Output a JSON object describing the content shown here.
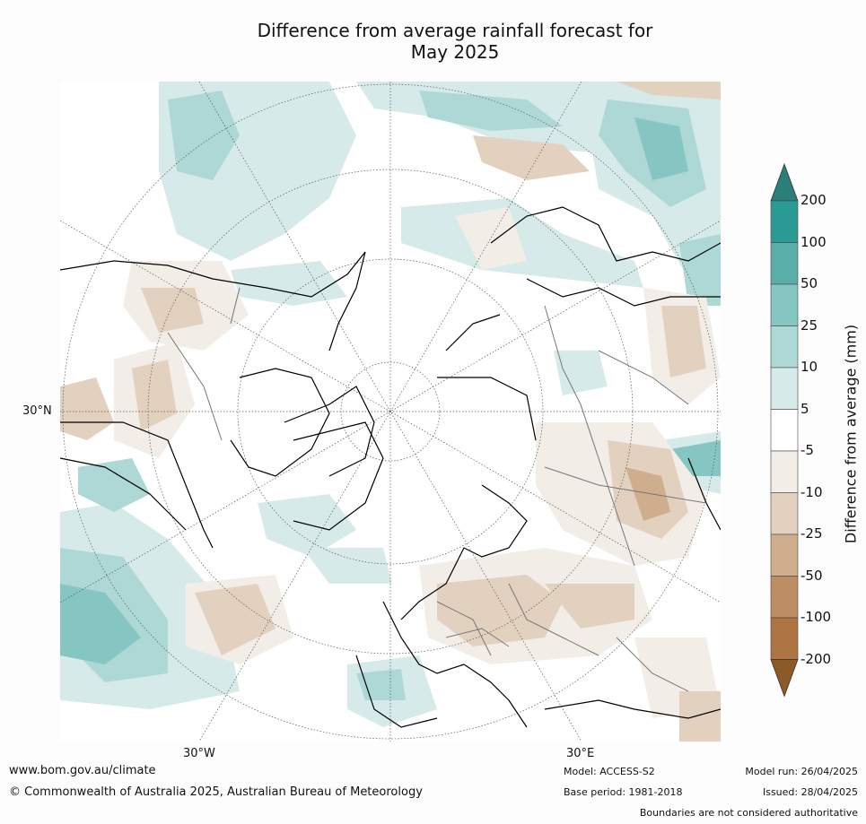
{
  "title": {
    "line1": "Difference from average rainfall forecast for",
    "line2": "May 2025"
  },
  "map": {
    "labels": {
      "lat_30n": "30°N",
      "lon_30w": "30°W",
      "lon_30e": "30°E"
    }
  },
  "colorbar": {
    "title": "Difference from average (mm)",
    "ticks": [
      "200",
      "100",
      "50",
      "25",
      "10",
      "5",
      "-5",
      "-10",
      "-25",
      "-50",
      "-100",
      "-200"
    ],
    "colors": {
      "over": "#2a7f7c",
      "bins": [
        "#2a9a95",
        "#59aeaa",
        "#86c6c2",
        "#aed8d5",
        "#d6ebe9",
        "#ffffff",
        "#f2ede7",
        "#e3d1c0",
        "#cfae8e",
        "#bd8d63",
        "#ae7443"
      ],
      "under": "#8c5a26"
    }
  },
  "footer": {
    "website": "www.bom.gov.au/climate",
    "copyright": "© Commonwealth of Australia 2025, Australian Bureau of Meteorology",
    "model": "Model: ACCESS-S2",
    "base_period": "Base period: 1981-2018",
    "model_run": "Model run: 26/04/2025",
    "issued": "Issued: 28/04/2025",
    "disclaimer": "Boundaries are not considered authoritative"
  }
}
